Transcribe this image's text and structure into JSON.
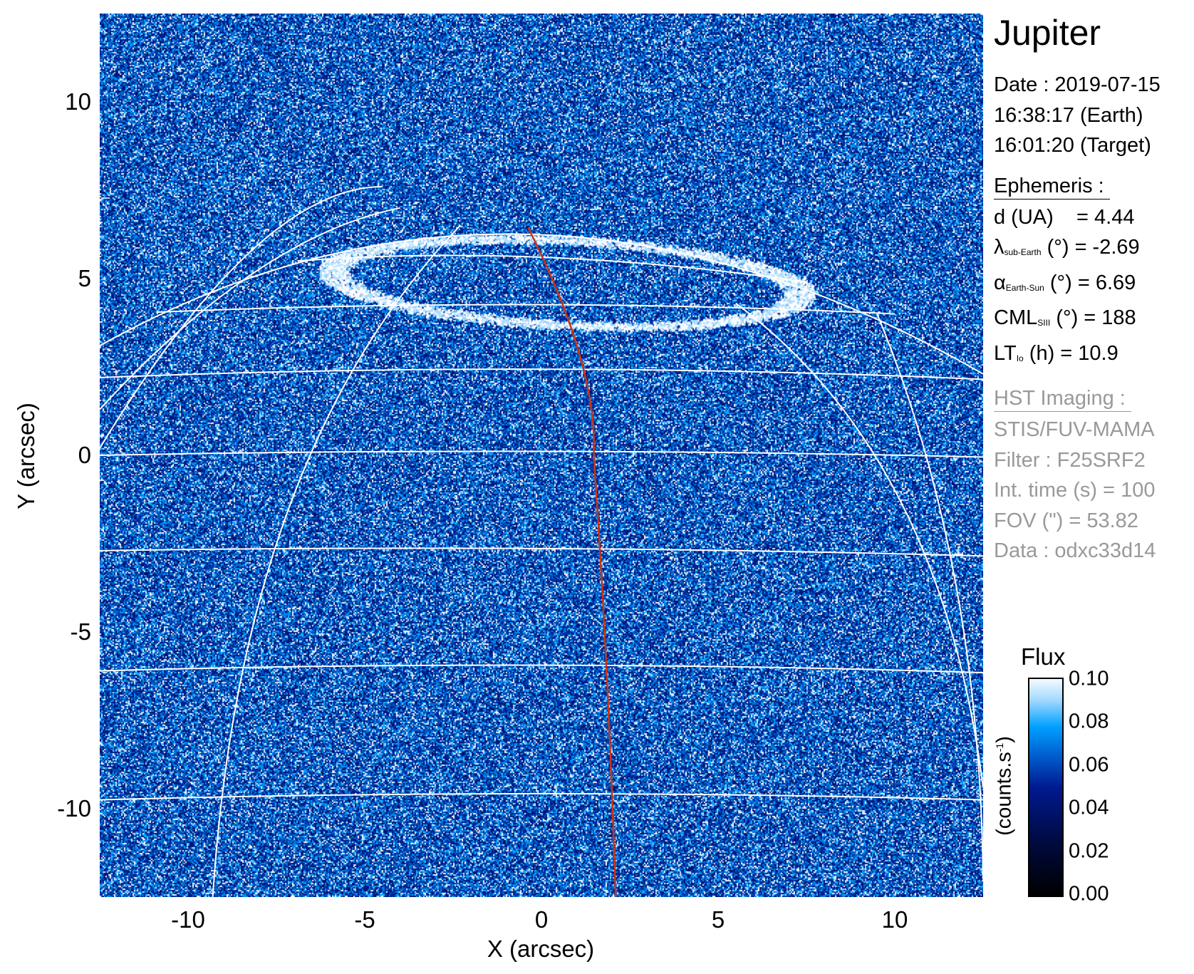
{
  "chart_data": {
    "type": "heatmap",
    "xlabel": "X (arcsec)",
    "ylabel": "Y (arcsec)",
    "xlim": [
      -12.5,
      12.5
    ],
    "ylim": [
      -12.5,
      12.5
    ],
    "xticks": [
      "-10",
      "-5",
      "0",
      "5",
      "10"
    ],
    "yticks": [
      "10",
      "5",
      "0",
      "-5",
      "-10"
    ],
    "xtick_values": [
      -10,
      -5,
      0,
      5,
      10
    ],
    "ytick_values": [
      10,
      5,
      0,
      -5,
      -10
    ],
    "colorbar": {
      "title": "Flux",
      "unit": "(counts.s",
      "unit_sup": "-1",
      "unit_close": ")",
      "ticks": [
        "0.10",
        "0.08",
        "0.06",
        "0.04",
        "0.02",
        "0.00"
      ],
      "tick_values": [
        0.1,
        0.08,
        0.06,
        0.04,
        0.02,
        0.0
      ],
      "range": [
        0.0,
        0.1
      ],
      "colors": [
        "#000000",
        "#001a90",
        "#00a0ff",
        "#f4faff"
      ]
    },
    "grid": "planetographic lat/lon grid (white)",
    "grid_color": "#ffffff",
    "meridian_color": "#d03010"
  },
  "info": {
    "title": "Jupiter",
    "date": "Date : 2019-07-15",
    "time_earth": "16:38:17 (Earth)",
    "time_target": "16:01:20 (Target)",
    "ephemeris_header": "Ephemeris :",
    "d": {
      "label": "d (UA)",
      "value": "= 4.44"
    },
    "lambda": {
      "symbol": "λ",
      "sub": "sub-Earth",
      "rest": "(°) = -2.69"
    },
    "alpha": {
      "symbol": "α",
      "sub": "Earth-Sun",
      "rest": "(°) = 6.69"
    },
    "cml": {
      "symbol": "CML",
      "sub": "SIII",
      "rest": "(°) = 188"
    },
    "lt": {
      "symbol": "LT",
      "sub": "Io",
      "rest": "(h) = 10.9"
    },
    "hst_header": "HST Imaging :",
    "instrument": "STIS/FUV-MAMA",
    "filter": "Filter : F25SRF2",
    "int_time": "Int. time (s) = 100",
    "fov": "FOV (\") = 53.82",
    "data": "Data : odxc33d14"
  }
}
